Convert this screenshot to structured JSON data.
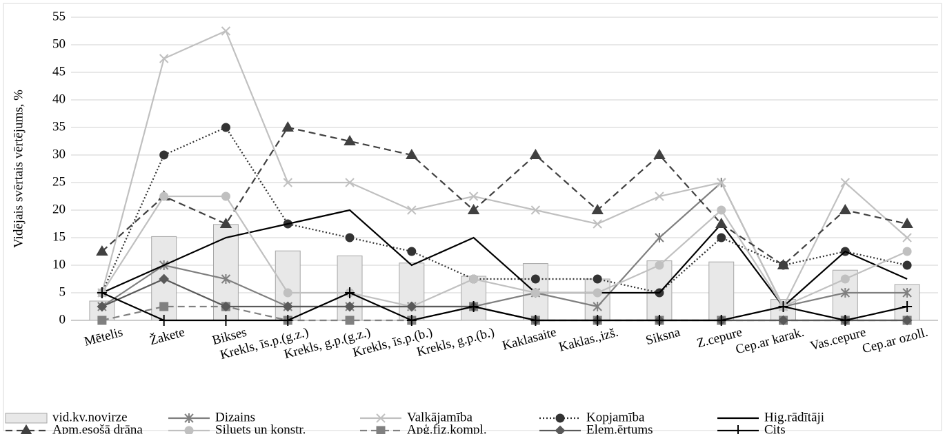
{
  "chart_data": {
    "type": "combo",
    "ylabel": "Vidējais svērtais vērtējums, %",
    "categories": [
      "Mētelis",
      "Žakete",
      "Bikses",
      "Krekls, īs.p.(g.z.)",
      "Krekls, g.p.(g.z.)",
      "Krekls, īs.p.(b.)",
      "Krekls, g.p.(b.)",
      "Kaklasaite",
      "Kaklas.,izš.",
      "Siksna",
      "Z.cepure",
      "Cep.ar karak.",
      "Vas.cepure",
      "Cep.ar ozoll."
    ],
    "ylim": [
      0,
      55
    ],
    "yticks": [
      0,
      5,
      10,
      15,
      20,
      25,
      30,
      35,
      40,
      45,
      50,
      55
    ],
    "grid": true,
    "legend": "bottom",
    "series": [
      {
        "name": "vid.kv.novirze",
        "type": "bar",
        "color": "#e8e8e8",
        "values": [
          3.5,
          15.2,
          17.4,
          12.6,
          11.7,
          10.4,
          8,
          10.3,
          7.5,
          10.8,
          10.6,
          3.8,
          9.1,
          6.5
        ]
      },
      {
        "name": "Dizains",
        "type": "line",
        "color": "#7f7f7f",
        "marker": "star",
        "dash": "solid",
        "values": [
          2.5,
          10,
          7.5,
          2.5,
          2.5,
          2.5,
          2.5,
          5,
          2.5,
          15,
          25,
          2.5,
          5,
          5
        ]
      },
      {
        "name": "Valkājamība",
        "type": "line",
        "color": "#c0c0c0",
        "marker": "x",
        "dash": "solid",
        "values": [
          5,
          47.5,
          52.5,
          25,
          25,
          20,
          22.5,
          20,
          17.5,
          22.5,
          25,
          2.5,
          25,
          15
        ]
      },
      {
        "name": "Kopjamība",
        "type": "line",
        "color": "#333333",
        "marker": "circle",
        "dash": "dotted",
        "values": [
          5,
          30,
          35,
          17.5,
          15,
          12.5,
          7.5,
          7.5,
          7.5,
          5,
          15,
          10,
          12.5,
          10
        ]
      },
      {
        "name": "Hig.rādītāji",
        "type": "line",
        "color": "#000000",
        "marker": "none",
        "dash": "solid",
        "values": [
          5,
          10,
          15,
          17.5,
          20,
          10,
          15,
          5,
          5,
          5,
          17.5,
          2.5,
          12.5,
          7.5
        ]
      },
      {
        "name": "Apm.esošā drāna",
        "type": "line",
        "color": "#404040",
        "marker": "triangle",
        "dash": "dashed",
        "values": [
          12.5,
          22.5,
          17.5,
          35,
          32.5,
          30,
          20,
          30,
          20,
          30,
          17.5,
          10,
          20,
          17.5
        ]
      },
      {
        "name": "Siluets un konstr.",
        "type": "line",
        "color": "#c0c0c0",
        "marker": "circle",
        "dash": "solid",
        "values": [
          5,
          22.5,
          22.5,
          5,
          5,
          2.5,
          7.5,
          5,
          5,
          10,
          20,
          2.5,
          7.5,
          12.5
        ]
      },
      {
        "name": "Apģ.fiz.kompl.",
        "type": "line",
        "color": "#808080",
        "marker": "square",
        "dash": "dashed",
        "values": [
          0,
          2.5,
          2.5,
          0,
          0,
          0,
          2.5,
          0,
          0,
          0,
          0,
          0,
          0,
          0
        ]
      },
      {
        "name": "Elem.ērtums",
        "type": "line",
        "color": "#595959",
        "marker": "diamond",
        "dash": "solid",
        "values": [
          2.5,
          7.5,
          2.5,
          2.5,
          2.5,
          2.5,
          2.5,
          0,
          0,
          0,
          0,
          0,
          0,
          0
        ]
      },
      {
        "name": "Cits",
        "type": "line",
        "color": "#000000",
        "marker": "plus",
        "dash": "solid",
        "values": [
          5,
          0,
          0,
          0,
          5,
          0,
          2.5,
          0,
          0,
          0,
          0,
          2.5,
          0,
          2.5
        ]
      }
    ]
  }
}
